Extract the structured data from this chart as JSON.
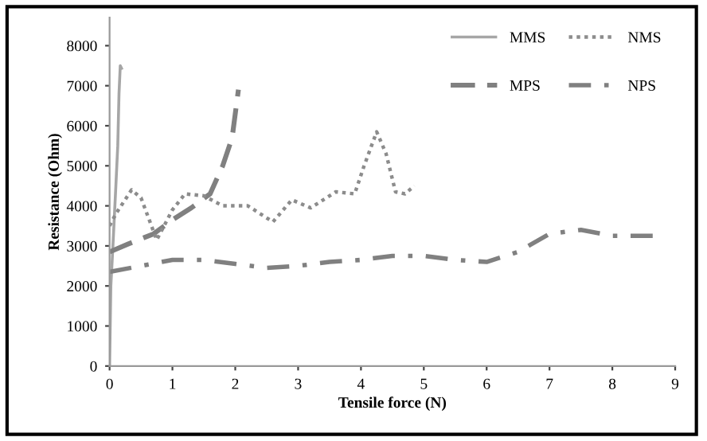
{
  "chart_data": {
    "type": "line",
    "xlabel": "Tensile force (N)",
    "ylabel": "Resistance (Ohm)",
    "xlim": [
      0,
      9
    ],
    "xticks": [
      0,
      1,
      2,
      3,
      4,
      5,
      6,
      7,
      8,
      9
    ],
    "ylim": [
      0,
      8700
    ],
    "yticks": [
      0,
      1000,
      2000,
      3000,
      4000,
      5000,
      6000,
      7000,
      8000
    ],
    "grid": false,
    "legend": "top right",
    "series": [
      {
        "name": "MMS",
        "color": "#a6a6a6",
        "line_style": "solid",
        "x": [
          0,
          0.02,
          0.05,
          0.1,
          0.13,
          0.15,
          0.17,
          0.2
        ],
        "values": [
          0,
          2000,
          2900,
          4500,
          5500,
          6800,
          7500,
          7400
        ]
      },
      {
        "name": "MPS",
        "color": "#808080",
        "line_style": "dashed",
        "x": [
          0,
          0.3,
          0.7,
          1,
          1.3,
          1.6,
          1.8,
          1.95,
          2.05
        ],
        "values": [
          2850,
          3050,
          3300,
          3650,
          3950,
          4300,
          5000,
          5700,
          6900
        ]
      },
      {
        "name": "NMS",
        "color": "#8c8c8c",
        "line_style": "dotted",
        "x": [
          0,
          0.1,
          0.35,
          0.5,
          0.75,
          1.0,
          1.2,
          1.5,
          1.8,
          2.2,
          2.6,
          2.9,
          3.2,
          3.6,
          3.9,
          4.05,
          4.25,
          4.4,
          4.55,
          4.7,
          4.85
        ],
        "values": [
          3500,
          3800,
          4400,
          4200,
          3150,
          3900,
          4300,
          4250,
          4000,
          4000,
          3600,
          4150,
          3950,
          4350,
          4300,
          5000,
          5850,
          5300,
          4350,
          4300,
          4500
        ]
      },
      {
        "name": "NPS",
        "color": "#808080",
        "line_style": "dashdot",
        "x": [
          0,
          0.5,
          1,
          1.5,
          2,
          2.5,
          3,
          3.5,
          4,
          4.5,
          5,
          5.5,
          6,
          6.5,
          7,
          7.5,
          8,
          8.7
        ],
        "values": [
          2350,
          2500,
          2650,
          2650,
          2550,
          2450,
          2500,
          2600,
          2650,
          2750,
          2750,
          2650,
          2600,
          2850,
          3300,
          3400,
          3250,
          3250
        ]
      }
    ]
  }
}
